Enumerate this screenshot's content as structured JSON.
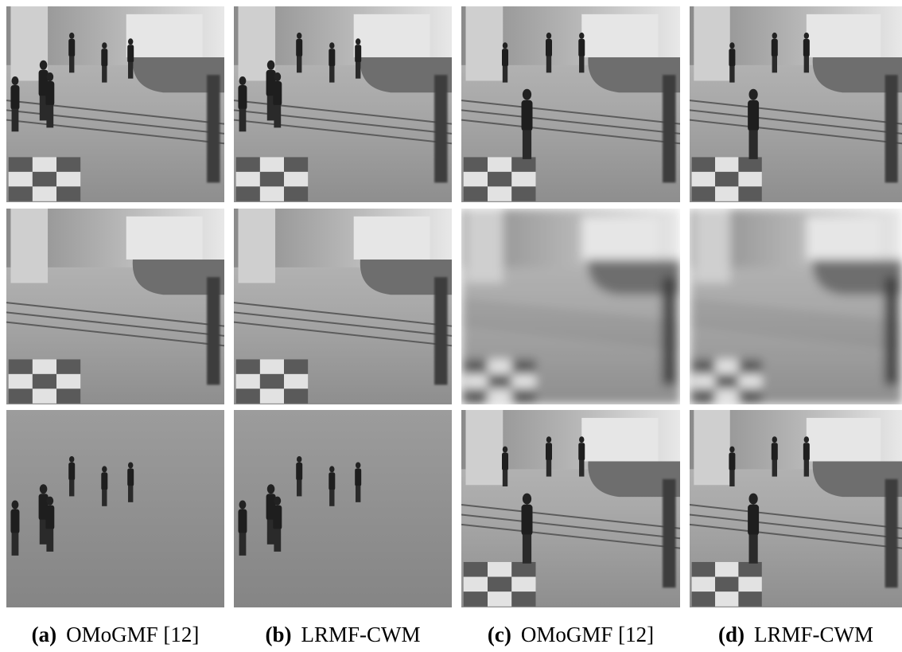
{
  "figure": {
    "panels": [
      {
        "label": "(a)",
        "caption": "OMoGMF [12]"
      },
      {
        "label": "(b)",
        "caption": "LRMF-CWM"
      },
      {
        "label": "(c)",
        "caption": "OMoGMF [12]"
      },
      {
        "label": "(d)",
        "caption": "LRMF-CWM"
      }
    ]
  }
}
